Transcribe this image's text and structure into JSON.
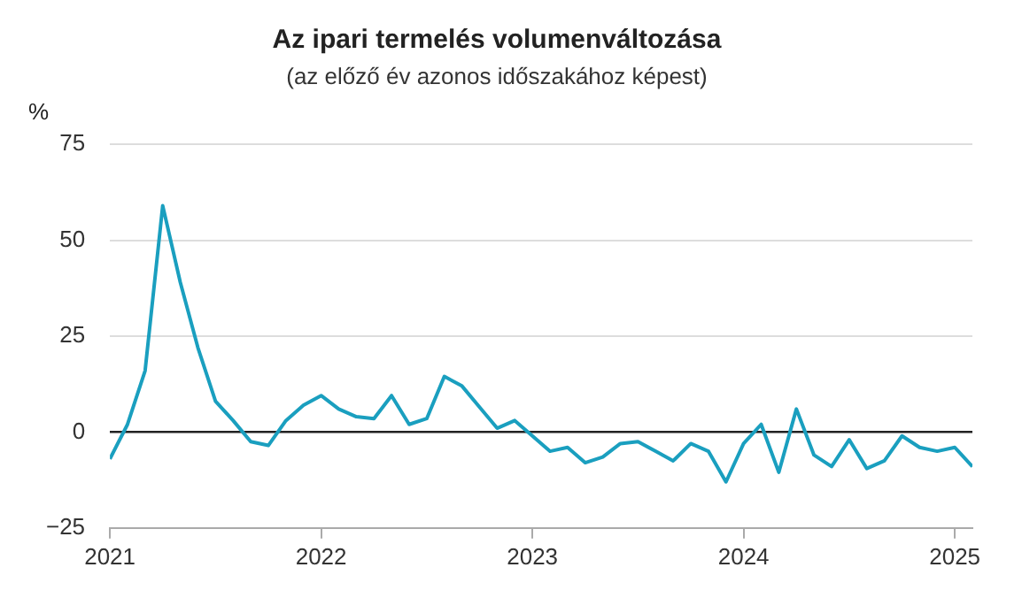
{
  "chart_data": {
    "type": "line",
    "title": "Az ipari termelés volumenváltozása",
    "subtitle": "(az előző év azonos időszakához képest)",
    "ylabel": "%",
    "x": [
      "2021-01",
      "2021-02",
      "2021-03",
      "2021-04",
      "2021-05",
      "2021-06",
      "2021-07",
      "2021-08",
      "2021-09",
      "2021-10",
      "2021-11",
      "2021-12",
      "2022-01",
      "2022-02",
      "2022-03",
      "2022-04",
      "2022-05",
      "2022-06",
      "2022-07",
      "2022-08",
      "2022-09",
      "2022-10",
      "2022-11",
      "2022-12",
      "2023-01",
      "2023-02",
      "2023-03",
      "2023-04",
      "2023-05",
      "2023-06",
      "2023-07",
      "2023-08",
      "2023-09",
      "2023-10",
      "2023-11",
      "2023-12",
      "2024-01",
      "2024-02",
      "2024-03",
      "2024-04",
      "2024-05",
      "2024-06",
      "2024-07",
      "2024-08",
      "2024-09",
      "2024-10",
      "2024-11",
      "2024-12",
      "2025-01",
      "2025-02"
    ],
    "series": [
      {
        "color": "#1a9fbf",
        "values": [
          -7,
          2,
          16,
          59,
          39,
          22,
          8,
          3,
          -2.5,
          -3.5,
          3,
          7,
          9.5,
          6,
          4,
          3.5,
          9.5,
          2,
          3.5,
          14.5,
          12,
          6.5,
          1,
          3,
          -1,
          -5,
          -4,
          -8,
          -6.5,
          -3,
          -2.5,
          -5,
          -7.5,
          -3,
          -5,
          -13,
          -3,
          2,
          -10.5,
          6,
          -6,
          -9,
          -2,
          -9.5,
          -7.5,
          -1,
          -4,
          -5,
          -4,
          -9
        ]
      }
    ],
    "xlim": [
      "2021-01",
      "2025-02"
    ],
    "xticks": [
      {
        "value": "2021-01",
        "label": "2021"
      },
      {
        "value": "2022-01",
        "label": "2022"
      },
      {
        "value": "2023-01",
        "label": "2023"
      },
      {
        "value": "2024-01",
        "label": "2024"
      },
      {
        "value": "2025-01",
        "label": "2025"
      }
    ],
    "ylim": [
      -25,
      75
    ],
    "yticks": [
      -25,
      0,
      25,
      50,
      75
    ],
    "grid": "y",
    "marker": "none",
    "line_style": "solid",
    "legend": false
  }
}
